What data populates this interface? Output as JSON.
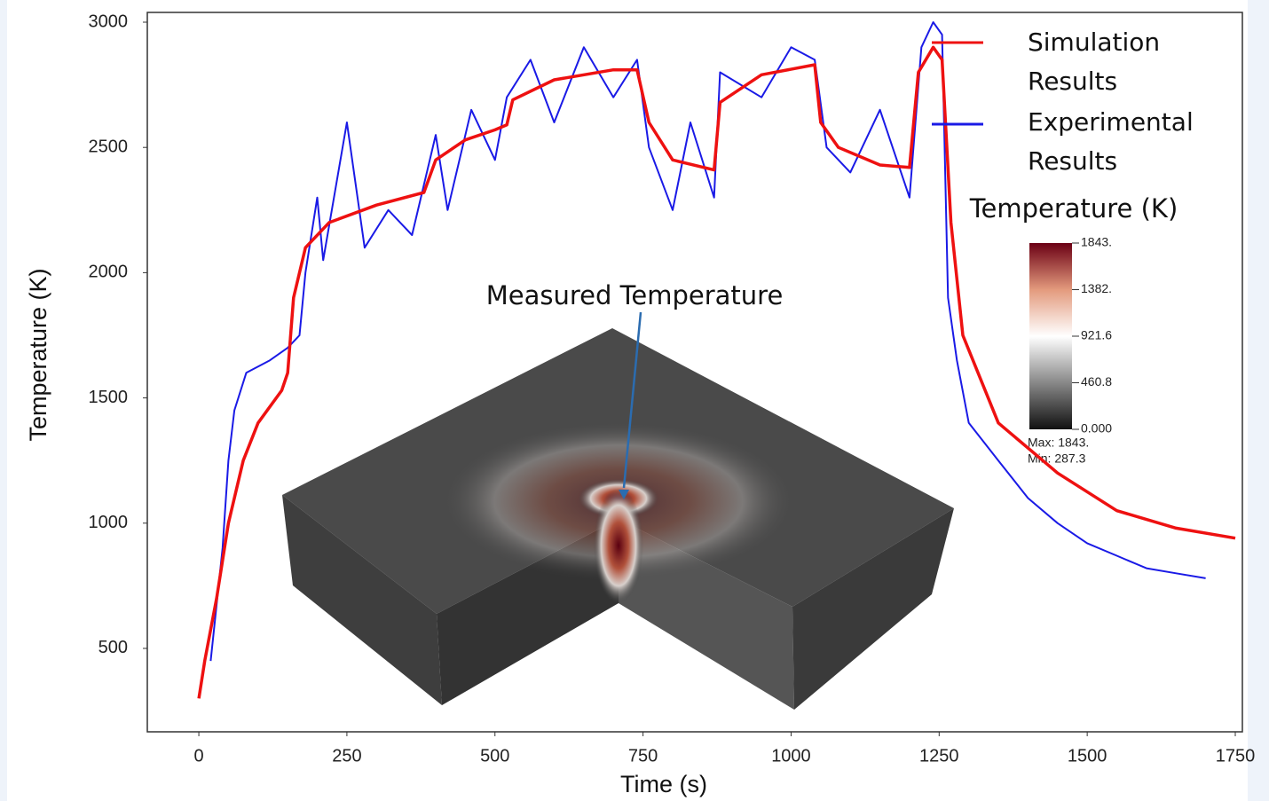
{
  "chart_data": {
    "type": "line",
    "xlabel": "Time (s)",
    "ylabel": "Temperature (K)",
    "xlim": [
      -87,
      1762
    ],
    "ylim": [
      167,
      3039
    ],
    "xticks": [
      0,
      250,
      500,
      750,
      1000,
      1250,
      1500,
      1750
    ],
    "yticks": [
      500,
      1000,
      1500,
      2000,
      2500,
      3000
    ],
    "grid": false,
    "legend": "upper right",
    "annotation": "Measured Temperature",
    "series": [
      {
        "name": "Experimental Results",
        "color": "#1a1ae6",
        "x": [
          20,
          40,
          50,
          60,
          80,
          120,
          150,
          170,
          180,
          200,
          210,
          250,
          280,
          320,
          360,
          400,
          420,
          460,
          500,
          520,
          560,
          600,
          650,
          700,
          740,
          760,
          800,
          830,
          870,
          880,
          950,
          1000,
          1040,
          1060,
          1100,
          1150,
          1200,
          1220,
          1240,
          1255,
          1265,
          1280,
          1300,
          1350,
          1400,
          1450,
          1500,
          1550,
          1600,
          1650,
          1700
        ],
        "values": [
          450,
          900,
          1250,
          1450,
          1600,
          1650,
          1700,
          1750,
          2000,
          2300,
          2050,
          2600,
          2100,
          2250,
          2150,
          2550,
          2250,
          2650,
          2450,
          2700,
          2850,
          2600,
          2900,
          2700,
          2850,
          2500,
          2250,
          2600,
          2300,
          2800,
          2700,
          2900,
          2850,
          2500,
          2400,
          2650,
          2300,
          2900,
          3000,
          2950,
          1900,
          1650,
          1400,
          1250,
          1100,
          1000,
          920,
          870,
          820,
          800,
          780
        ]
      },
      {
        "name": "Simulation Results",
        "color": "#ee1111",
        "x": [
          0,
          10,
          30,
          50,
          75,
          100,
          140,
          150,
          160,
          180,
          220,
          300,
          380,
          400,
          450,
          500,
          520,
          530,
          600,
          700,
          740,
          760,
          800,
          870,
          880,
          950,
          1040,
          1050,
          1080,
          1150,
          1200,
          1215,
          1240,
          1255,
          1270,
          1290,
          1350,
          1450,
          1550,
          1650,
          1750
        ],
        "values": [
          300,
          450,
          700,
          1000,
          1250,
          1400,
          1530,
          1600,
          1900,
          2100,
          2200,
          2270,
          2320,
          2450,
          2530,
          2570,
          2590,
          2690,
          2770,
          2810,
          2810,
          2600,
          2450,
          2410,
          2680,
          2790,
          2830,
          2600,
          2500,
          2430,
          2420,
          2800,
          2900,
          2850,
          2200,
          1750,
          1400,
          1200,
          1050,
          980,
          940
        ]
      }
    ],
    "colorbar": {
      "title": "Temperature (K)",
      "clim": [
        0,
        1843
      ],
      "ticks": [
        {
          "value": 1843,
          "label": "1843."
        },
        {
          "value": 1382,
          "label": "1382."
        },
        {
          "value": 921.6,
          "label": "921.6"
        },
        {
          "value": 460.8,
          "label": "460.8"
        },
        {
          "value": 0,
          "label": "0.000"
        }
      ],
      "max_label": "Max:  1843.",
      "min_label": "Min:  287.3"
    }
  }
}
